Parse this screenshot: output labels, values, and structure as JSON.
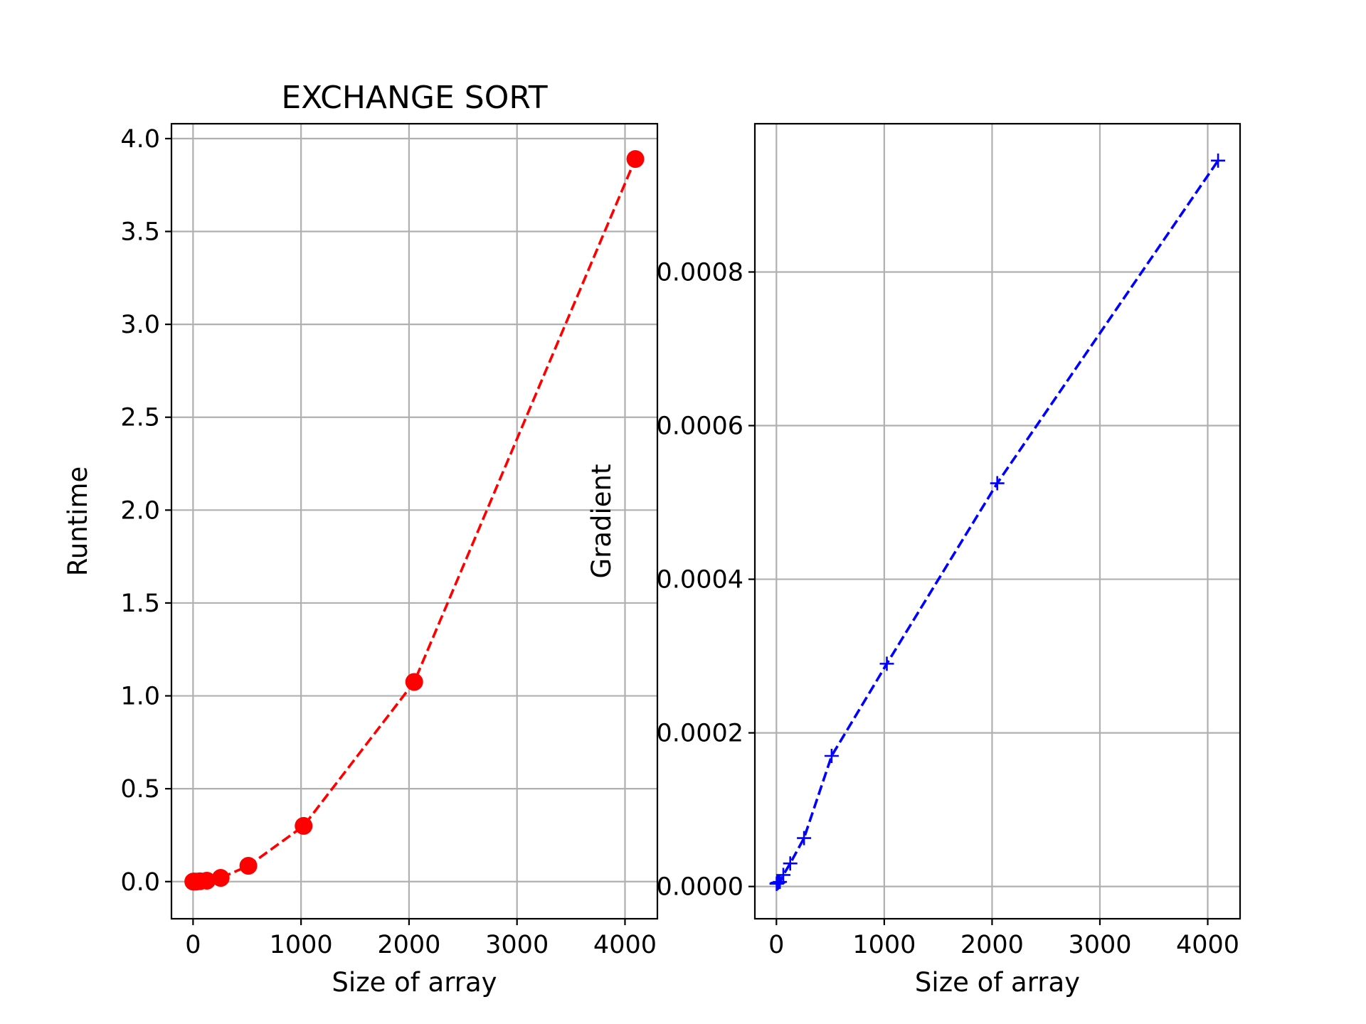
{
  "chart_data": [
    {
      "type": "line",
      "title": "EXCHANGE SORT",
      "xlabel": "Size of array",
      "ylabel": "Runtime",
      "xlim": [
        -200,
        4300
      ],
      "ylim": [
        -0.2,
        4.08
      ],
      "xticks": [
        0,
        1000,
        2000,
        3000,
        4000
      ],
      "xtick_labels": [
        "0",
        "1000",
        "2000",
        "3000",
        "4000"
      ],
      "yticks": [
        0.0,
        0.5,
        1.0,
        1.5,
        2.0,
        2.5,
        3.0,
        3.5,
        4.0
      ],
      "ytick_labels": [
        "0.0",
        "0.5",
        "1.0",
        "1.5",
        "2.0",
        "2.5",
        "3.0",
        "3.5",
        "4.0"
      ],
      "grid": true,
      "series": [
        {
          "color": "#ff0000",
          "linestyle": "dashed",
          "marker": "circle",
          "x": [
            2,
            4,
            8,
            16,
            32,
            64,
            128,
            256,
            512,
            1024,
            2048,
            4096
          ],
          "y": [
            0.0,
            0.0,
            0.0,
            0.0,
            0.0,
            0.002,
            0.005,
            0.02,
            0.085,
            0.3,
            1.075,
            3.89
          ]
        }
      ]
    },
    {
      "type": "line",
      "title": "",
      "xlabel": "Size of array",
      "ylabel": "Gradient",
      "xlim": [
        -200,
        4300
      ],
      "ylim": [
        -4.2e-05,
        0.000993
      ],
      "xticks": [
        0,
        1000,
        2000,
        3000,
        4000
      ],
      "xtick_labels": [
        "0",
        "1000",
        "2000",
        "3000",
        "4000"
      ],
      "yticks": [
        0.0,
        0.0002,
        0.0004,
        0.0006,
        0.0008
      ],
      "ytick_labels": [
        "0.0000",
        "0.0002",
        "0.0004",
        "0.0006",
        "0.0008"
      ],
      "grid": true,
      "series": [
        {
          "color": "#0000ff",
          "linestyle": "dashed",
          "marker": "plus",
          "x": [
            2,
            4,
            8,
            16,
            32,
            64,
            128,
            256,
            512,
            1024,
            2048,
            4096
          ],
          "y": [
            3.5e-06,
            4e-06,
            4.5e-06,
            5e-06,
            6e-06,
            1.5e-05,
            3e-05,
            6.3e-05,
            0.00017,
            0.00029,
            0.000525,
            0.000945
          ]
        }
      ]
    }
  ]
}
